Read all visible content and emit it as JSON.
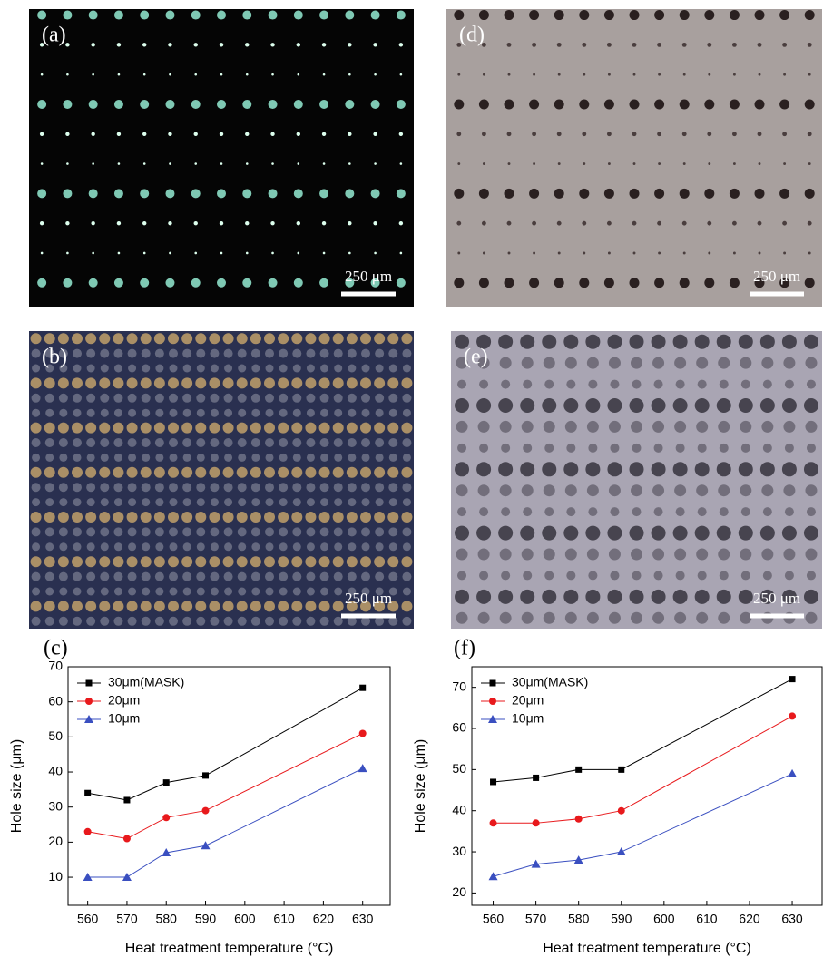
{
  "micrographs": [
    {
      "label": "(a)",
      "scale_bar": "250 μm"
    },
    {
      "label": "(d)",
      "scale_bar": "250 μm"
    },
    {
      "label": "(b)",
      "scale_bar": "250 μm"
    },
    {
      "label": "(e)",
      "scale_bar": "250 μm"
    }
  ],
  "chart_data": [
    {
      "type": "line",
      "label": "(c)",
      "x_label": "Heat treatment temperature (°C)",
      "y_label": "Hole size (μm)",
      "x": [
        560,
        570,
        580,
        590,
        630
      ],
      "series": [
        {
          "name": "30μm(MASK)",
          "color": "#000000",
          "marker": "square",
          "values": [
            34,
            32,
            37,
            39,
            64
          ]
        },
        {
          "name": "20μm",
          "color": "#e8191c",
          "marker": "circle",
          "values": [
            23,
            21,
            27,
            29,
            51
          ]
        },
        {
          "name": "10μm",
          "color": "#3a4fc0",
          "marker": "triangle",
          "values": [
            10,
            10,
            17,
            19,
            41
          ]
        }
      ],
      "xlim": [
        555,
        637
      ],
      "xticks": [
        560,
        570,
        580,
        590,
        600,
        610,
        620,
        630
      ],
      "ylim": [
        2,
        70
      ],
      "yticks": [
        10,
        20,
        30,
        40,
        50,
        60,
        70
      ],
      "legend": "upper-left"
    },
    {
      "type": "line",
      "label": "(f)",
      "x_label": "Heat treatment temperature (°C)",
      "y_label": "Hole size (μm)",
      "x": [
        560,
        570,
        580,
        590,
        630
      ],
      "series": [
        {
          "name": "30μm(MASK)",
          "color": "#000000",
          "marker": "square",
          "values": [
            47,
            48,
            50,
            50,
            72
          ]
        },
        {
          "name": "20μm",
          "color": "#e8191c",
          "marker": "circle",
          "values": [
            37,
            37,
            38,
            40,
            63
          ]
        },
        {
          "name": "10μm",
          "color": "#3a4fc0",
          "marker": "triangle",
          "values": [
            24,
            27,
            28,
            30,
            49
          ]
        }
      ],
      "xlim": [
        555,
        637
      ],
      "xticks": [
        560,
        570,
        580,
        590,
        600,
        610,
        620,
        630
      ],
      "ylim": [
        17,
        75
      ],
      "yticks": [
        20,
        30,
        40,
        50,
        60,
        70
      ],
      "legend": "upper-left"
    }
  ]
}
